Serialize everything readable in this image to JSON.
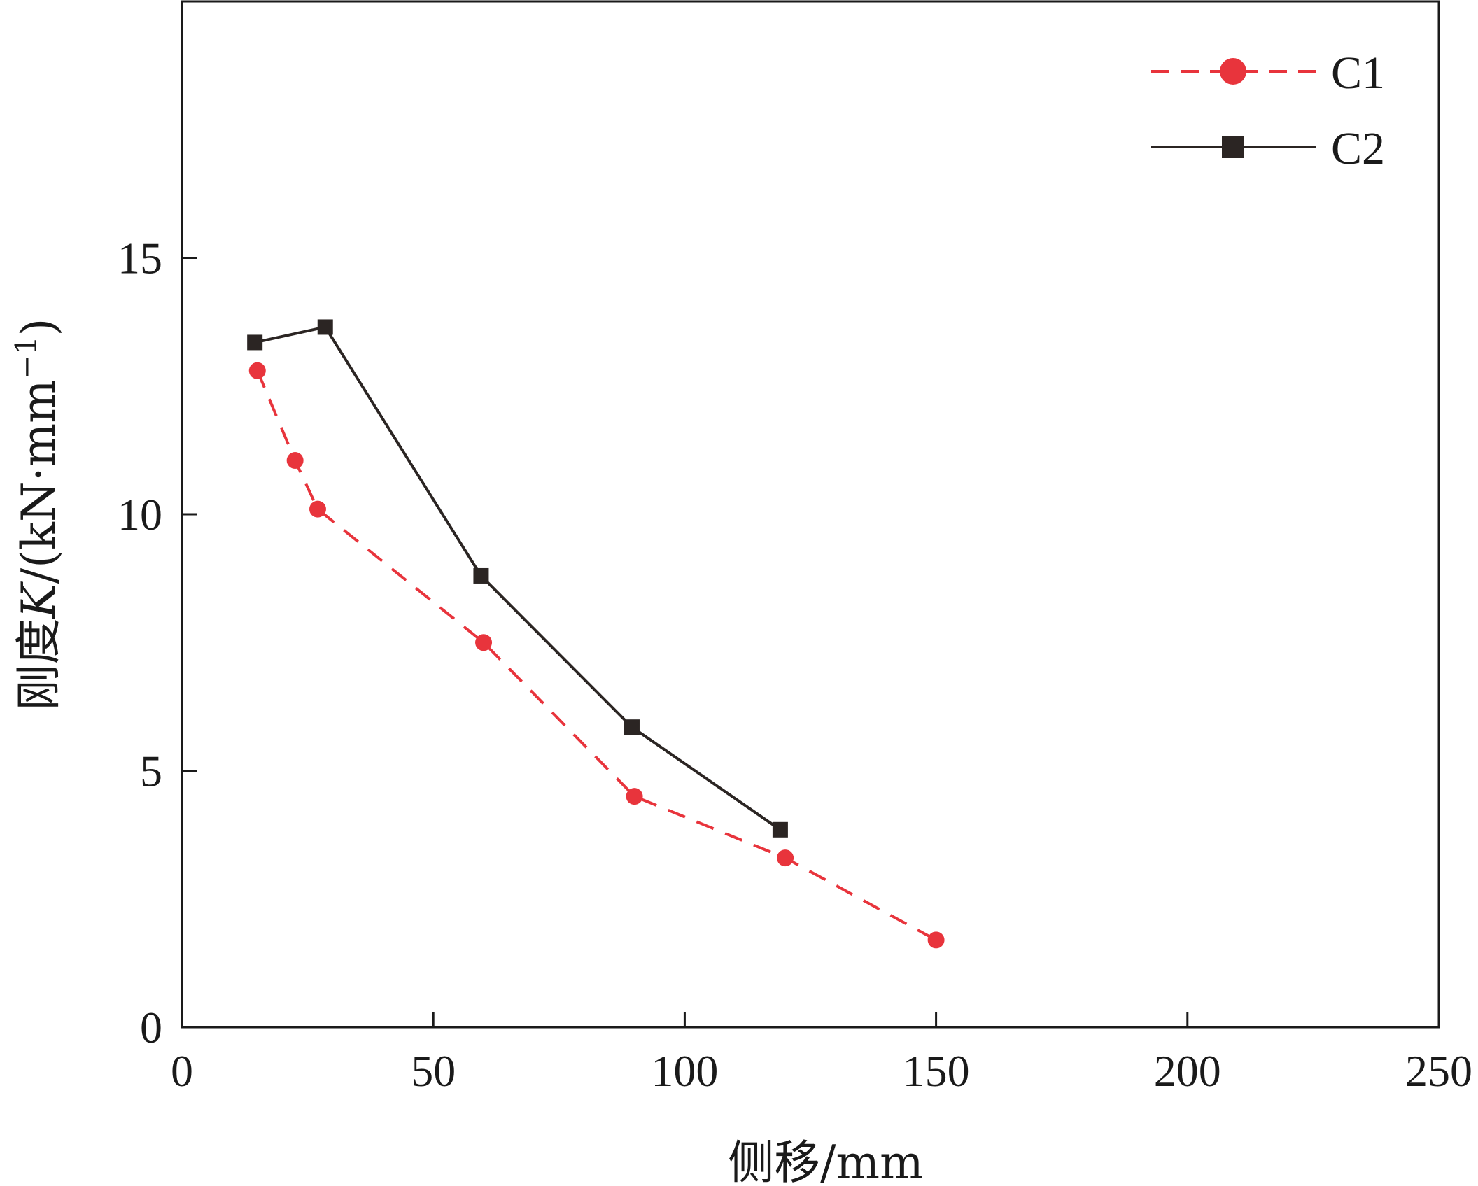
{
  "chart_data": {
    "type": "line",
    "title": "",
    "xlabel": "侧移/mm",
    "ylabel_prefix": "刚度",
    "ylabel_var": "K",
    "ylabel_unit_open": "/(kN·mm",
    "ylabel_sup": "−1",
    "ylabel_unit_close": ")",
    "xlim": [
      0,
      250
    ],
    "ylim": [
      0,
      20
    ],
    "x_ticks": [
      0,
      50,
      100,
      150,
      200,
      250
    ],
    "y_ticks": [
      0,
      5,
      10,
      15
    ],
    "grid": false,
    "legend_position": "top-right",
    "series": [
      {
        "name": "C1",
        "color": "#e8343c",
        "line_style": "dashed",
        "marker": "circle",
        "x": [
          15,
          22.5,
          27,
          60,
          90,
          120,
          150
        ],
        "y": [
          12.8,
          11.05,
          10.1,
          7.5,
          4.5,
          3.3,
          1.7
        ]
      },
      {
        "name": "C2",
        "color": "#2b2523",
        "line_style": "solid",
        "marker": "square",
        "x": [
          14.5,
          28.5,
          59.5,
          89.5,
          119
        ],
        "y": [
          13.35,
          13.65,
          8.8,
          5.85,
          3.85
        ]
      }
    ]
  }
}
